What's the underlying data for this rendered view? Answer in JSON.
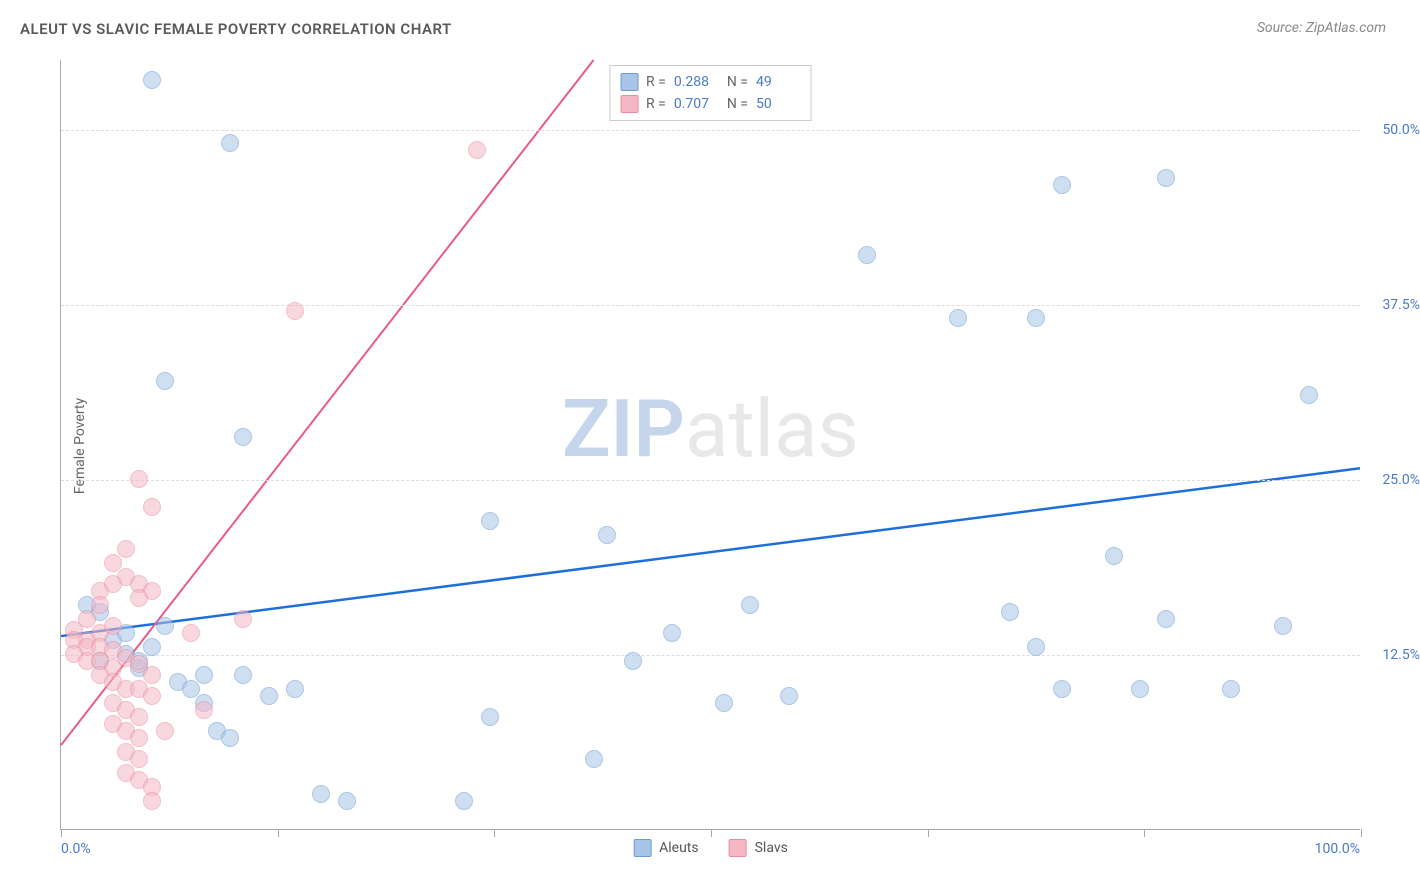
{
  "title": "ALEUT VS SLAVIC FEMALE POVERTY CORRELATION CHART",
  "source": "Source: ZipAtlas.com",
  "watermark_a": "ZIP",
  "watermark_b": "atlas",
  "ylabel": "Female Poverty",
  "chart": {
    "type": "scatter",
    "xlim": [
      0,
      100
    ],
    "ylim": [
      0,
      55
    ],
    "xtick_positions": [
      0,
      16.7,
      33.3,
      50,
      66.7,
      83.3,
      100
    ],
    "yticks": [
      {
        "v": 12.5,
        "label": "12.5%"
      },
      {
        "v": 25.0,
        "label": "25.0%"
      },
      {
        "v": 37.5,
        "label": "37.5%"
      },
      {
        "v": 50.0,
        "label": "50.0%"
      }
    ],
    "xlabel_min": "0.0%",
    "xlabel_max": "100.0%",
    "background_color": "#ffffff",
    "grid_color": "#dddddd",
    "marker_radius": 9,
    "marker_opacity": 0.55,
    "series": [
      {
        "name": "Aleuts",
        "color_fill": "#a8c5e8",
        "color_stroke": "#6b9bd1",
        "trend_color": "#1e6fd9",
        "trend_width": 2.5,
        "trend": {
          "x1": 0,
          "y1": 13.8,
          "x2": 100,
          "y2": 25.8
        },
        "stats": {
          "R": "0.288",
          "N": "49"
        },
        "points": [
          [
            7,
            53.5
          ],
          [
            13,
            49
          ],
          [
            8,
            32
          ],
          [
            14,
            28
          ],
          [
            77,
            46
          ],
          [
            85,
            46.5
          ],
          [
            69,
            36.5
          ],
          [
            75,
            36.5
          ],
          [
            62,
            41
          ],
          [
            96,
            31
          ],
          [
            2,
            16
          ],
          [
            3,
            15.5
          ],
          [
            4,
            13.5
          ],
          [
            5,
            14
          ],
          [
            6,
            11.5
          ],
          [
            3,
            12
          ],
          [
            5,
            12.5
          ],
          [
            6,
            12
          ],
          [
            7,
            13
          ],
          [
            8,
            14.5
          ],
          [
            9,
            10.5
          ],
          [
            10,
            10
          ],
          [
            11,
            9
          ],
          [
            12,
            7
          ],
          [
            13,
            6.5
          ],
          [
            16,
            9.5
          ],
          [
            18,
            10
          ],
          [
            11,
            11
          ],
          [
            14,
            11
          ],
          [
            20,
            2.5
          ],
          [
            22,
            2
          ],
          [
            31,
            2
          ],
          [
            33,
            22
          ],
          [
            33,
            8
          ],
          [
            44,
            12
          ],
          [
            42,
            21
          ],
          [
            41,
            5
          ],
          [
            51,
            9
          ],
          [
            53,
            16
          ],
          [
            56,
            9.5
          ],
          [
            81,
            19.5
          ],
          [
            73,
            15.5
          ],
          [
            75,
            13
          ],
          [
            77,
            10
          ],
          [
            83,
            10
          ],
          [
            85,
            15
          ],
          [
            94,
            14.5
          ],
          [
            90,
            10
          ],
          [
            47,
            14
          ]
        ]
      },
      {
        "name": "Slavs",
        "color_fill": "#f4b8c5",
        "color_stroke": "#e88ba3",
        "trend_color": "#e85a8a",
        "trend_width": 2,
        "trend": {
          "x1": 0,
          "y1": 6,
          "x2": 41,
          "y2": 55
        },
        "stats": {
          "R": "0.707",
          "N": "50"
        },
        "points": [
          [
            32,
            48.5
          ],
          [
            18,
            37
          ],
          [
            6,
            25
          ],
          [
            7,
            23
          ],
          [
            4,
            19
          ],
          [
            5,
            20
          ],
          [
            5,
            18
          ],
          [
            6,
            17.5
          ],
          [
            7,
            17
          ],
          [
            6,
            16.5
          ],
          [
            3,
            17
          ],
          [
            4,
            17.5
          ],
          [
            3,
            16
          ],
          [
            2,
            15
          ],
          [
            1,
            14.2
          ],
          [
            2,
            13.5
          ],
          [
            3,
            14
          ],
          [
            4,
            14.5
          ],
          [
            1,
            13.5
          ],
          [
            2,
            13
          ],
          [
            3,
            13
          ],
          [
            4,
            12.8
          ],
          [
            1,
            12.5
          ],
          [
            2,
            12
          ],
          [
            3,
            12
          ],
          [
            4,
            11.5
          ],
          [
            5,
            12.2
          ],
          [
            6,
            11.8
          ],
          [
            7,
            11
          ],
          [
            3,
            11
          ],
          [
            4,
            10.5
          ],
          [
            5,
            10
          ],
          [
            6,
            10
          ],
          [
            7,
            9.5
          ],
          [
            4,
            9
          ],
          [
            5,
            8.5
          ],
          [
            6,
            8
          ],
          [
            4,
            7.5
          ],
          [
            5,
            7
          ],
          [
            6,
            6.5
          ],
          [
            5,
            5.5
          ],
          [
            6,
            5
          ],
          [
            5,
            4
          ],
          [
            6,
            3.5
          ],
          [
            7,
            3
          ],
          [
            7,
            2
          ],
          [
            14,
            15
          ],
          [
            10,
            14
          ],
          [
            11,
            8.5
          ],
          [
            8,
            7
          ]
        ]
      }
    ]
  },
  "legend": {
    "series1": "Aleuts",
    "series2": "Slavs"
  }
}
